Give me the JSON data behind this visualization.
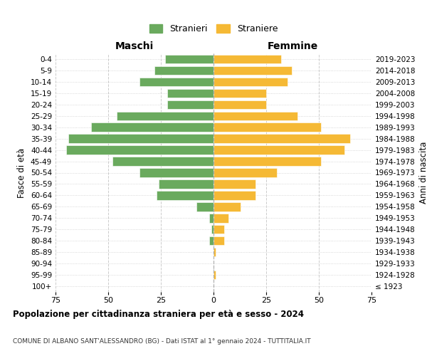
{
  "age_groups": [
    "100+",
    "95-99",
    "90-94",
    "85-89",
    "80-84",
    "75-79",
    "70-74",
    "65-69",
    "60-64",
    "55-59",
    "50-54",
    "45-49",
    "40-44",
    "35-39",
    "30-34",
    "25-29",
    "20-24",
    "15-19",
    "10-14",
    "5-9",
    "0-4"
  ],
  "birth_years": [
    "≤ 1923",
    "1924-1928",
    "1929-1933",
    "1934-1938",
    "1939-1943",
    "1944-1948",
    "1949-1953",
    "1954-1958",
    "1959-1963",
    "1964-1968",
    "1969-1973",
    "1974-1978",
    "1979-1983",
    "1984-1988",
    "1989-1993",
    "1994-1998",
    "1999-2003",
    "2004-2008",
    "2009-2013",
    "2014-2018",
    "2019-2023"
  ],
  "males": [
    0,
    0,
    0,
    0,
    2,
    1,
    2,
    8,
    27,
    26,
    35,
    48,
    70,
    69,
    58,
    46,
    22,
    22,
    35,
    28,
    23
  ],
  "females": [
    0,
    1,
    0,
    1,
    5,
    5,
    7,
    13,
    20,
    20,
    30,
    51,
    62,
    65,
    51,
    40,
    25,
    25,
    35,
    37,
    32
  ],
  "male_color": "#6aaa5e",
  "female_color": "#f5b935",
  "background_color": "#ffffff",
  "grid_color": "#cccccc",
  "title": "Popolazione per cittadinanza straniera per età e sesso - 2024",
  "subtitle": "COMUNE DI ALBANO SANT'ALESSANDRO (BG) - Dati ISTAT al 1° gennaio 2024 - TUTTITALIA.IT",
  "left_label": "Maschi",
  "right_label": "Femmine",
  "left_axis_label": "Fasce di età",
  "right_axis_label": "Anni di nascita",
  "legend_males": "Stranieri",
  "legend_females": "Straniere",
  "xlim": 75
}
